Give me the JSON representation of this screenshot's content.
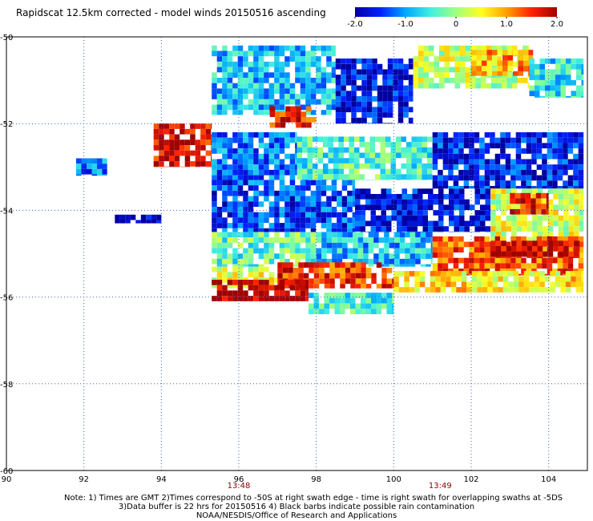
{
  "title": "Rapidscat 12.5km corrected - model winds 20150516 ascending",
  "colorbar": {
    "ticks": [
      "-2.0",
      "-1.0",
      "0",
      "1.0",
      "2.0"
    ],
    "min": -2.0,
    "max": 2.0,
    "colors": [
      "#0000a0",
      "#0020ff",
      "#00a8ff",
      "#40f0e0",
      "#a0ff80",
      "#ffff20",
      "#ffa000",
      "#ff2000",
      "#a00000"
    ]
  },
  "time_labels": [
    {
      "text": "13:48",
      "lon": 96.0
    },
    {
      "text": "13:49",
      "lon": 101.2
    }
  ],
  "notes": [
    "Note: 1) Times are GMT 2)Times correspond to -50S at right swath edge - time is right swath for overlapping swaths at -5DS",
    "3)Data buffer is 22 hrs for 20150516 4) Black barbs indicate possible rain contamination",
    "NOAA/NESDIS/Office of Research and Applications"
  ],
  "chart_data": {
    "type": "heatmap",
    "title": "Rapidscat 12.5km corrected - model winds 20150516 ascending",
    "xlabel": "",
    "ylabel": "",
    "xlim": [
      90,
      105
    ],
    "ylim": [
      -60,
      -50
    ],
    "xticks": [
      90,
      92,
      94,
      96,
      98,
      100,
      102,
      104
    ],
    "xtick_labels": [
      "90",
      "92",
      "94",
      "96",
      "98",
      "100",
      "102",
      "104"
    ],
    "yticks": [
      -50,
      -52,
      -54,
      -56,
      -58,
      -60
    ],
    "ytick_labels": [
      "-50",
      "-52",
      "-54",
      "-56",
      "-58",
      "-60"
    ],
    "grid": true,
    "value_range": [
      -2.0,
      2.0
    ],
    "regions": [
      {
        "lon": [
          95.3,
          98.5
        ],
        "lat": [
          -51.8,
          -50.2
        ],
        "value": -0.8
      },
      {
        "lon": [
          96.8,
          98.0
        ],
        "lat": [
          -52.1,
          -51.6
        ],
        "value": 1.6
      },
      {
        "lon": [
          98.5,
          100.5
        ],
        "lat": [
          -52.0,
          -50.5
        ],
        "value": -1.7
      },
      {
        "lon": [
          100.5,
          103.5
        ],
        "lat": [
          -51.2,
          -50.2
        ],
        "value": 0.2
      },
      {
        "lon": [
          102.0,
          103.6
        ],
        "lat": [
          -50.9,
          -50.3
        ],
        "value": 0.9
      },
      {
        "lon": [
          103.5,
          104.9
        ],
        "lat": [
          -51.4,
          -50.5
        ],
        "value": -0.6
      },
      {
        "lon": [
          93.8,
          95.3
        ],
        "lat": [
          -53.0,
          -52.0
        ],
        "value": 1.8
      },
      {
        "lon": [
          95.3,
          97.5
        ],
        "lat": [
          -53.3,
          -52.2
        ],
        "value": -1.2
      },
      {
        "lon": [
          97.5,
          101.0
        ],
        "lat": [
          -53.3,
          -52.3
        ],
        "value": -0.4
      },
      {
        "lon": [
          101.0,
          104.9
        ],
        "lat": [
          -53.5,
          -52.2
        ],
        "value": -1.6
      },
      {
        "lon": [
          95.3,
          99.0
        ],
        "lat": [
          -54.5,
          -53.3
        ],
        "value": -1.4
      },
      {
        "lon": [
          99.0,
          102.5
        ],
        "lat": [
          -54.5,
          -53.5
        ],
        "value": -1.7
      },
      {
        "lon": [
          102.5,
          104.9
        ],
        "lat": [
          -54.8,
          -53.5
        ],
        "value": 0.3
      },
      {
        "lon": [
          103.0,
          104.0
        ],
        "lat": [
          -54.1,
          -53.6
        ],
        "value": 1.6
      },
      {
        "lon": [
          95.3,
          98.0
        ],
        "lat": [
          -55.3,
          -54.5
        ],
        "value": -0.3
      },
      {
        "lon": [
          98.0,
          101.0
        ],
        "lat": [
          -55.3,
          -54.5
        ],
        "value": -0.8
      },
      {
        "lon": [
          101.0,
          104.9
        ],
        "lat": [
          -55.5,
          -54.6
        ],
        "value": 1.3
      },
      {
        "lon": [
          102.5,
          104.8
        ],
        "lat": [
          -55.1,
          -54.7
        ],
        "value": 1.9
      },
      {
        "lon": [
          95.3,
          97.0
        ],
        "lat": [
          -55.8,
          -55.3
        ],
        "value": 0.4
      },
      {
        "lon": [
          97.0,
          100.0
        ],
        "lat": [
          -55.8,
          -55.2
        ],
        "value": 1.5
      },
      {
        "lon": [
          100.0,
          104.9
        ],
        "lat": [
          -55.9,
          -55.4
        ],
        "value": 0.6
      },
      {
        "lon": [
          95.3,
          97.8
        ],
        "lat": [
          -56.1,
          -55.6
        ],
        "value": 2.0
      },
      {
        "lon": [
          97.8,
          100.0
        ],
        "lat": [
          -56.4,
          -55.9
        ],
        "value": -0.5
      },
      {
        "lon": [
          91.8,
          92.6
        ],
        "lat": [
          -53.2,
          -52.8
        ],
        "value": -1.2
      },
      {
        "lon": [
          92.8,
          94.0
        ],
        "lat": [
          -54.3,
          -54.1
        ],
        "value": -1.9
      }
    ]
  }
}
